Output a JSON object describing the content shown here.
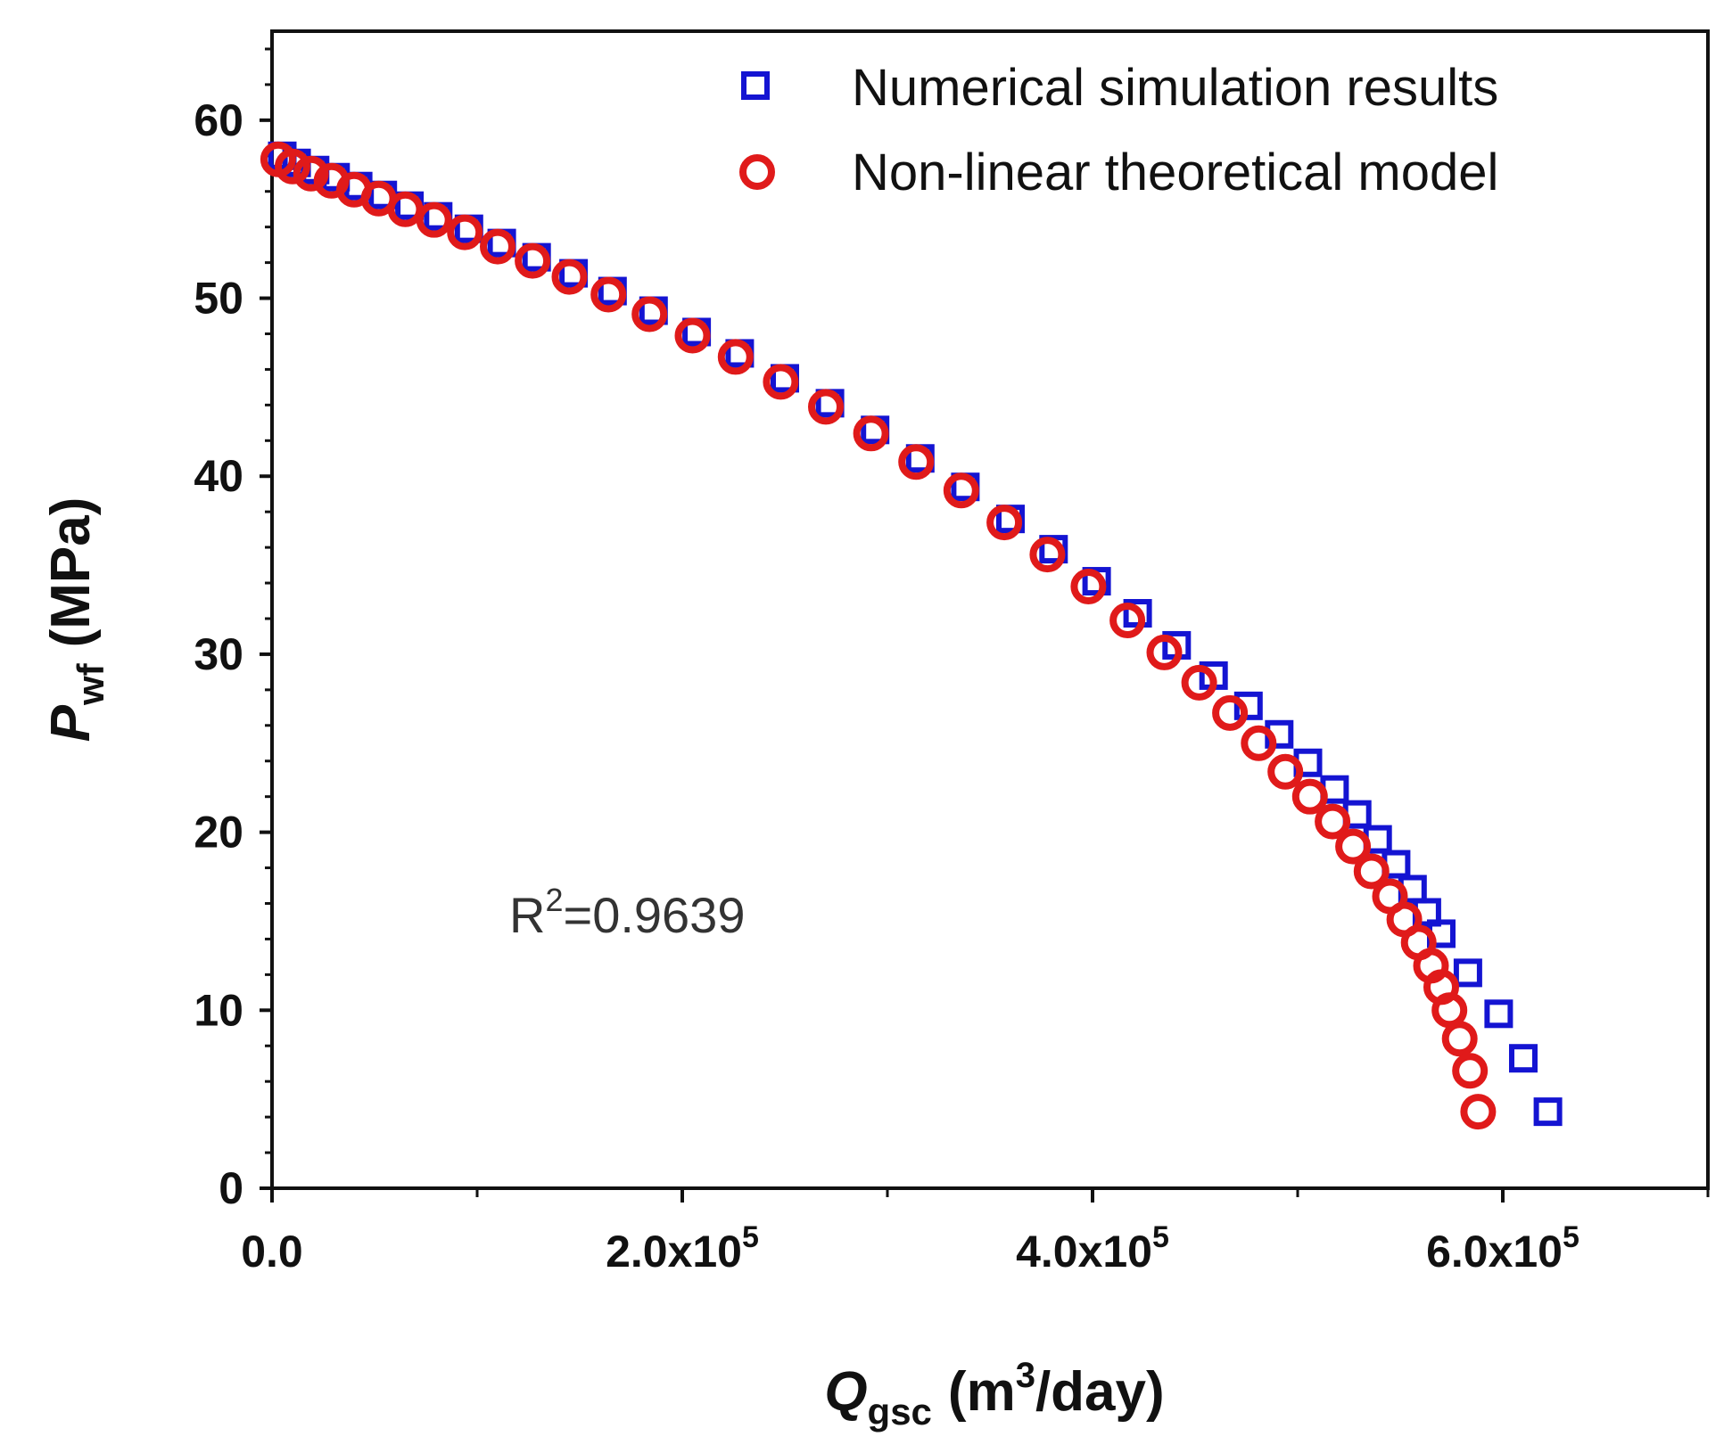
{
  "chart_data": {
    "type": "scatter",
    "xlabel_main": "Q",
    "xlabel_sub": "gsc",
    "xlabel_unit_pre": "(m",
    "xlabel_unit_sup": "3",
    "xlabel_unit_post": "/day)",
    "ylabel_main": "P",
    "ylabel_sub": "wf",
    "ylabel_unit": "(MPa)",
    "xlim": [
      0,
      700000
    ],
    "ylim": [
      0,
      65
    ],
    "x_major_ticks": [
      {
        "value": 0,
        "base": "0.0",
        "exp": ""
      },
      {
        "value": 200000,
        "base": "2.0x10",
        "exp": "5"
      },
      {
        "value": 400000,
        "base": "4.0x10",
        "exp": "5"
      },
      {
        "value": 600000,
        "base": "6.0x10",
        "exp": "5"
      }
    ],
    "x_minor_ticks": [
      100000,
      300000,
      500000,
      700000
    ],
    "y_major_ticks": [
      {
        "value": 0,
        "label": "0"
      },
      {
        "value": 10,
        "label": "10"
      },
      {
        "value": 20,
        "label": "20"
      },
      {
        "value": 30,
        "label": "30"
      },
      {
        "value": 40,
        "label": "40"
      },
      {
        "value": 50,
        "label": "50"
      },
      {
        "value": 60,
        "label": "60"
      }
    ],
    "annotation": {
      "prefix": "R",
      "sup": "2",
      "suffix": "=0.9639"
    },
    "series": [
      {
        "name": "Numerical simulation results",
        "marker": "square",
        "color": "#1414d2",
        "x": [
          5000,
          12000,
          21000,
          31000,
          42000,
          54000,
          67000,
          81000,
          96000,
          112000,
          129000,
          147000,
          166000,
          186000,
          207000,
          228000,
          250000,
          272000,
          294000,
          316000,
          338000,
          360000,
          381000,
          402000,
          422000,
          441000,
          459000,
          476000,
          491000,
          505000,
          518000,
          529000,
          539000,
          548000,
          556000,
          563000,
          570000,
          583000,
          598000,
          610000,
          622000
        ],
        "y": [
          58.0,
          57.6,
          57.2,
          56.8,
          56.3,
          55.8,
          55.2,
          54.6,
          53.9,
          53.1,
          52.3,
          51.4,
          50.4,
          49.3,
          48.1,
          46.9,
          45.5,
          44.1,
          42.6,
          41.0,
          39.4,
          37.6,
          35.9,
          34.1,
          32.3,
          30.5,
          28.8,
          27.1,
          25.5,
          23.9,
          22.4,
          21.0,
          19.6,
          18.2,
          16.8,
          15.5,
          14.3,
          12.1,
          9.8,
          7.3,
          4.3
        ]
      },
      {
        "name": "Non-linear theoretical model",
        "marker": "circle",
        "color": "#e01a1a",
        "x": [
          3000,
          10000,
          19000,
          29000,
          40000,
          52000,
          65000,
          79000,
          94000,
          110000,
          127000,
          145000,
          164000,
          184000,
          205000,
          226000,
          248000,
          270000,
          292000,
          314000,
          336000,
          357000,
          378000,
          398000,
          417000,
          435000,
          452000,
          467000,
          481000,
          494000,
          506000,
          517000,
          527000,
          536000,
          545000,
          552000,
          559000,
          565000,
          570000,
          574000,
          579000,
          584000,
          588000
        ],
        "y": [
          57.8,
          57.4,
          57.0,
          56.6,
          56.1,
          55.6,
          55.0,
          54.4,
          53.7,
          52.9,
          52.1,
          51.2,
          50.2,
          49.1,
          47.9,
          46.7,
          45.3,
          43.9,
          42.4,
          40.8,
          39.2,
          37.4,
          35.6,
          33.8,
          31.9,
          30.1,
          28.4,
          26.7,
          25.0,
          23.4,
          22.0,
          20.6,
          19.2,
          17.8,
          16.4,
          15.1,
          13.8,
          12.5,
          11.3,
          10.0,
          8.4,
          6.6,
          4.3
        ]
      }
    ]
  }
}
